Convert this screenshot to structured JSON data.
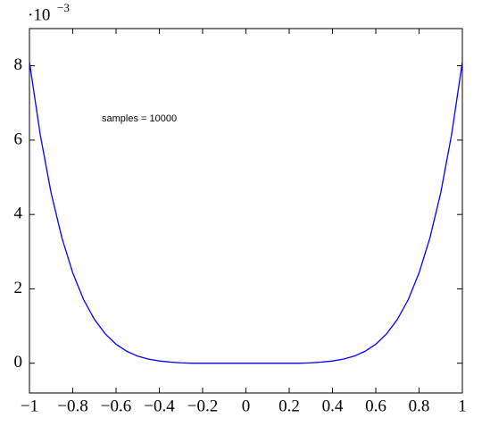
{
  "chart_data": {
    "type": "line",
    "y_scale_label": {
      "base": "·10",
      "exponent": "−3"
    },
    "annotation": "samples = 10000",
    "x": [
      -1,
      -0.95,
      -0.9,
      -0.85,
      -0.8,
      -0.75,
      -0.7,
      -0.65,
      -0.6,
      -0.55,
      -0.5,
      -0.45,
      -0.4,
      -0.35,
      -0.3,
      -0.25,
      -0.2,
      -0.15,
      -0.1,
      -0.05,
      0,
      0.05,
      0.1,
      0.15,
      0.2,
      0.25,
      0.3,
      0.35,
      0.4,
      0.45,
      0.5,
      0.55,
      0.6,
      0.65,
      0.7,
      0.75,
      0.8,
      0.85,
      0.9,
      0.95,
      1
    ],
    "values": [
      8.1,
      6.14,
      4.58,
      3.37,
      2.43,
      1.71,
      1.18,
      0.79,
      0.51,
      0.32,
      0.19,
      0.11,
      0.06,
      0.03,
      0.01,
      0,
      0,
      0,
      0,
      0,
      0,
      0,
      0,
      0,
      0,
      0,
      0.01,
      0.03,
      0.06,
      0.11,
      0.19,
      0.32,
      0.51,
      0.79,
      1.18,
      1.71,
      2.43,
      3.37,
      4.58,
      6.14,
      8.1
    ],
    "color": "#0000ff",
    "xlim": [
      -1,
      1
    ],
    "xticks": [
      {
        "value": -1,
        "label": "−1"
      },
      {
        "value": -0.8,
        "label": "−0.8"
      },
      {
        "value": -0.6,
        "label": "−0.6"
      },
      {
        "value": -0.4,
        "label": "−0.4"
      },
      {
        "value": -0.2,
        "label": "−0.2"
      },
      0,
      0.2,
      0.4,
      0.6,
      0.8,
      1
    ],
    "ylim": [
      -0.8,
      9
    ],
    "yticks": [
      0,
      2,
      4,
      6,
      8
    ]
  }
}
